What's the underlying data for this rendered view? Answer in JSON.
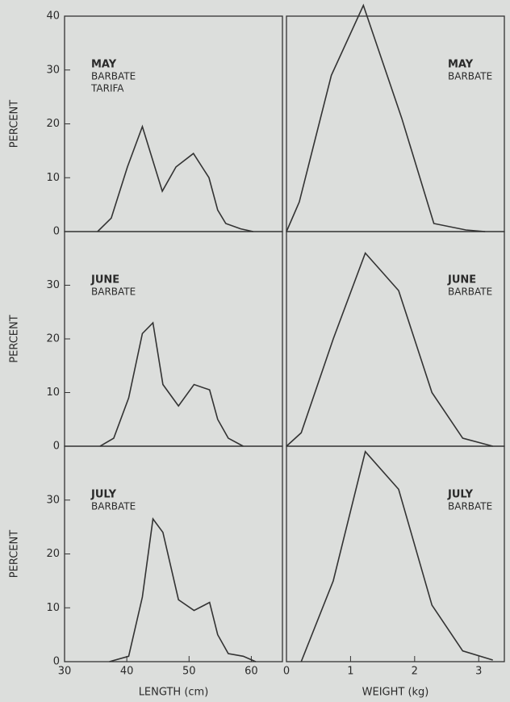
{
  "chart_data": [
    {
      "type": "line",
      "color": "#333333",
      "ylabel": "PERCENT",
      "annotations": [
        "MAY",
        "BARBATE",
        "TARIFA"
      ],
      "x": [
        35.3,
        37.5,
        40.1,
        42.5,
        45.7,
        47.9,
        50.7,
        53.2,
        54.6,
        55.9,
        58.3,
        60.3
      ],
      "values": [
        0,
        2.5,
        12,
        19.5,
        7.5,
        12,
        14.5,
        10,
        4,
        1.5,
        0.5,
        0
      ],
      "xlim": [
        30,
        65
      ],
      "ylim": [
        0,
        40
      ],
      "yticks": [
        0,
        10,
        20,
        30,
        40
      ]
    },
    {
      "type": "line",
      "color": "#333333",
      "annotations": [
        "MAY",
        "BARBATE"
      ],
      "x": [
        0,
        0.2,
        0.7,
        1.2,
        1.8,
        2.3,
        2.8,
        3.1
      ],
      "values": [
        0,
        5.5,
        29,
        42,
        21,
        1.5,
        0.3,
        0
      ],
      "xlim": [
        0,
        3.4
      ],
      "ylim": [
        0,
        40
      ]
    },
    {
      "type": "line",
      "color": "#333333",
      "ylabel": "PERCENT",
      "annotations": [
        "JUNE",
        "BARBATE"
      ],
      "x": [
        35.7,
        37.9,
        40.3,
        42.5,
        44.2,
        45.8,
        48.3,
        50.8,
        53.3,
        54.6,
        56.3,
        58.7
      ],
      "values": [
        0,
        1.5,
        9,
        21,
        23,
        11.5,
        7.5,
        11.5,
        10.5,
        5,
        1.5,
        0
      ],
      "xlim": [
        30,
        65
      ],
      "ylim": [
        0,
        40
      ],
      "yticks": [
        0,
        10,
        20,
        30
      ]
    },
    {
      "type": "line",
      "color": "#333333",
      "annotations": [
        "JUNE",
        "BARBATE"
      ],
      "x": [
        0,
        0.23,
        0.73,
        1.23,
        1.75,
        2.27,
        2.75,
        3.22
      ],
      "values": [
        0,
        2.5,
        20,
        36,
        29,
        10,
        1.5,
        0
      ],
      "xlim": [
        0,
        3.4
      ],
      "ylim": [
        0,
        40
      ]
    },
    {
      "type": "line",
      "color": "#333333",
      "ylabel": "PERCENT",
      "xlabel": "LENGTH (cm)",
      "annotations": [
        "JULY",
        "BARBATE"
      ],
      "x": [
        37.2,
        40.3,
        42.5,
        44.2,
        45.8,
        48.3,
        50.8,
        53.3,
        54.6,
        56.3,
        58.7,
        60.7
      ],
      "values": [
        0,
        1,
        12,
        26.5,
        24,
        11.5,
        9.5,
        11,
        5,
        1.5,
        1,
        0
      ],
      "xlim": [
        30,
        65
      ],
      "ylim": [
        0,
        40
      ],
      "yticks": [
        0,
        10,
        20,
        30
      ],
      "xticks": [
        30,
        40,
        50,
        60
      ]
    },
    {
      "type": "line",
      "color": "#333333",
      "xlabel": "WEIGHT (kg)",
      "annotations": [
        "JULY",
        "BARBATE"
      ],
      "x": [
        0.23,
        0.73,
        1.23,
        1.75,
        2.27,
        2.75,
        3.22
      ],
      "values": [
        0,
        15,
        39,
        32,
        10.5,
        2,
        0.3
      ],
      "xlim": [
        0,
        3.4
      ],
      "ylim": [
        0,
        40
      ],
      "xticks": [
        0,
        1,
        2,
        3
      ]
    }
  ]
}
